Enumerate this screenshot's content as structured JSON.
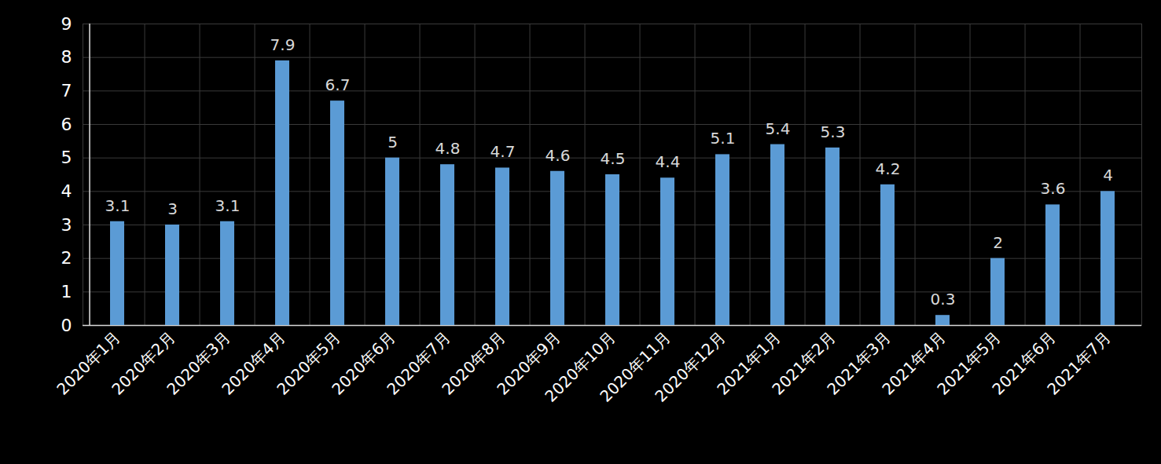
{
  "chart_data": {
    "type": "bar",
    "categories": [
      "2020年1月",
      "2020年2月",
      "2020年3月",
      "2020年4月",
      "2020年5月",
      "2020年6月",
      "2020年7月",
      "2020年8月",
      "2020年9月",
      "2020年10月",
      "2020年11月",
      "2020年12月",
      "2021年1月",
      "2021年2月",
      "2021年3月",
      "2021年4月",
      "2021年5月",
      "2021年6月",
      "2021年7月"
    ],
    "values": [
      3.1,
      3,
      3.1,
      7.9,
      6.7,
      5,
      4.8,
      4.7,
      4.6,
      4.5,
      4.4,
      5.1,
      5.4,
      5.3,
      4.2,
      0.3,
      2,
      3.6,
      4
    ],
    "color": "#5b9bd5",
    "ylim": [
      0,
      9
    ],
    "yticks": [
      0,
      1,
      2,
      3,
      4,
      5,
      6,
      7,
      8,
      9
    ],
    "grid": true,
    "data_labels": true
  }
}
